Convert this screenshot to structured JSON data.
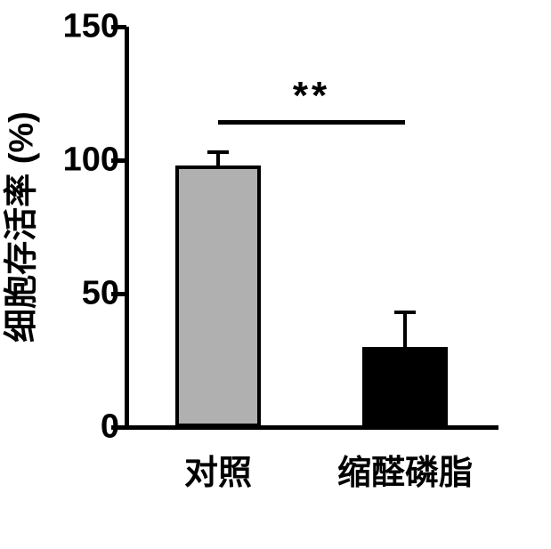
{
  "chart": {
    "type": "bar",
    "ylabel": "细胞存活率 (%)",
    "ylabel_fontsize": 38,
    "ylim": [
      0,
      150
    ],
    "yticks": [
      0,
      50,
      100,
      150
    ],
    "ytick_fontsize": 38,
    "categories": [
      "对照",
      "缩醛磷脂"
    ],
    "xtick_fontsize": 38,
    "values": [
      98,
      30
    ],
    "errors": [
      5,
      13
    ],
    "bar_colors": [
      "#b0b0b0",
      "#000000"
    ],
    "bar_border_color": "#000000",
    "bar_border_width": 4,
    "bar_width": 0.46,
    "background_color": "#ffffff",
    "axis_color": "#000000",
    "axis_width": 5,
    "error_cap_width": 24,
    "significance": {
      "label": "**",
      "fontsize": 44,
      "y": 115
    }
  }
}
